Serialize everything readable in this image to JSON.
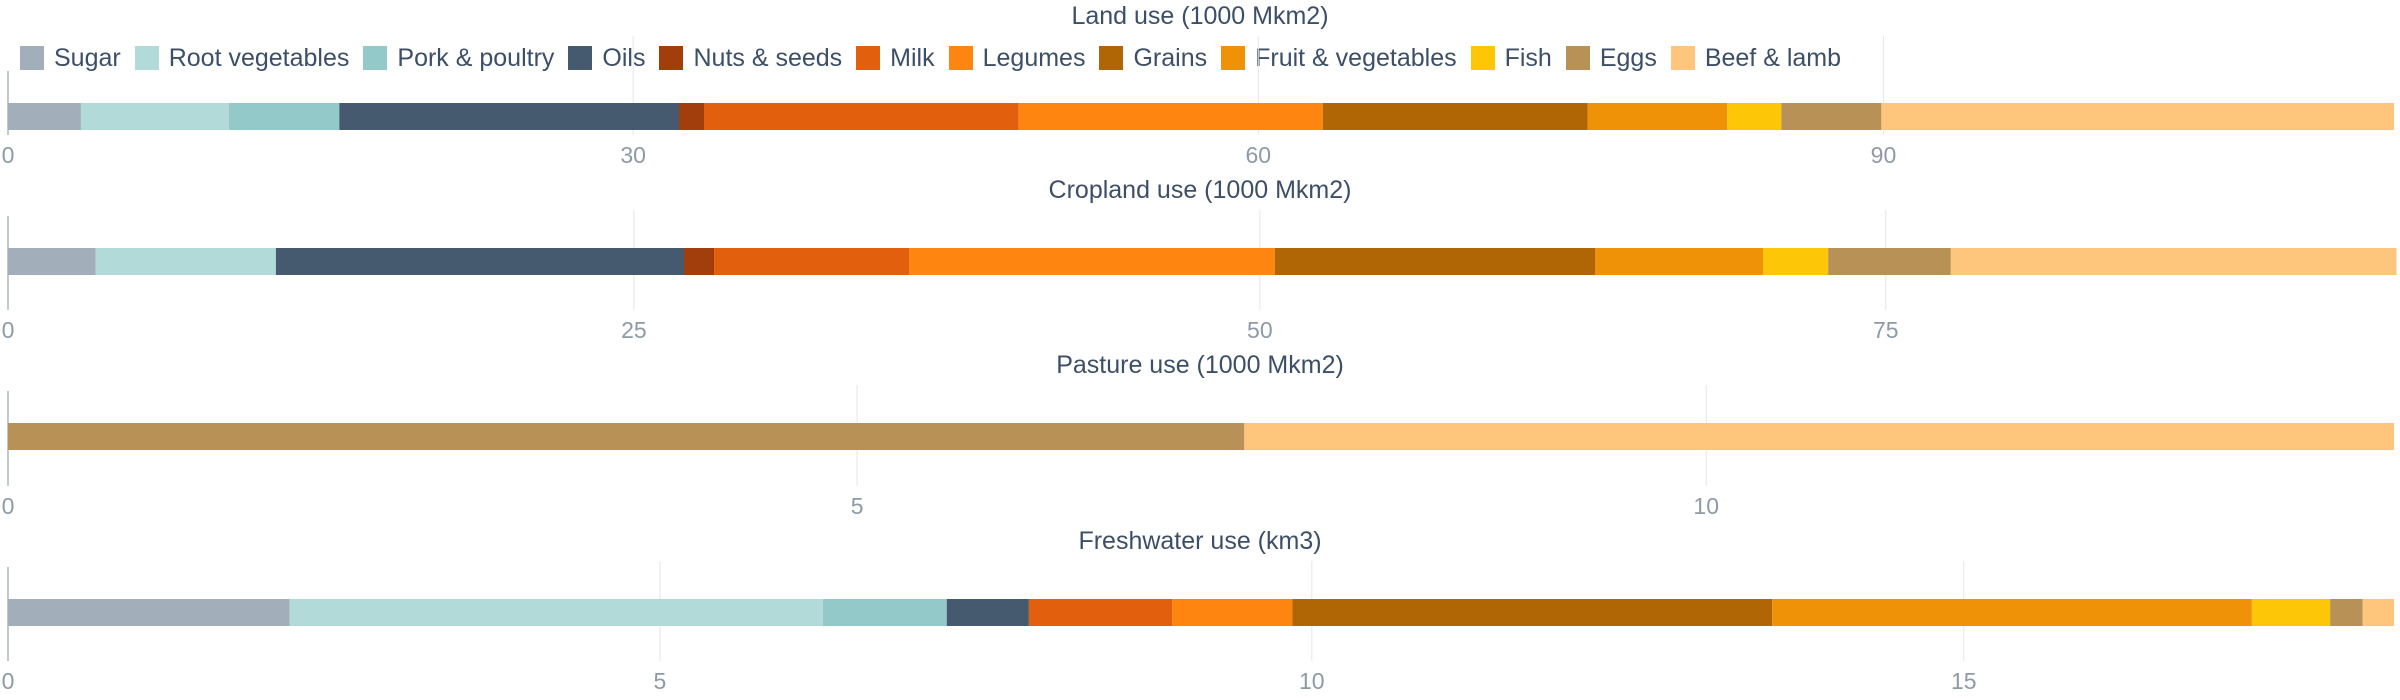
{
  "legend": {
    "items": [
      {
        "label": "Sugar",
        "color": "#a2aeb9"
      },
      {
        "label": "Root vegetables",
        "color": "#b2dad9"
      },
      {
        "label": "Pork & poultry",
        "color": "#93c9c9"
      },
      {
        "label": "Oils",
        "color": "#455a6f"
      },
      {
        "label": "Nuts & seeds",
        "color": "#a23d0c"
      },
      {
        "label": "Milk",
        "color": "#e2600d"
      },
      {
        "label": "Legumes",
        "color": "#fd8510"
      },
      {
        "label": "Grains",
        "color": "#b16605"
      },
      {
        "label": "Fruit & vegetables",
        "color": "#f09208"
      },
      {
        "label": "Fish",
        "color": "#fdc708"
      },
      {
        "label": "Eggs",
        "color": "#b79156"
      },
      {
        "label": "Beef & lamb",
        "color": "#fec67d"
      }
    ]
  },
  "chart_data": [
    {
      "type": "bar",
      "orientation": "horizontal",
      "stacked": true,
      "title": "Land use (1000 Mkm2)",
      "xlim": [
        0,
        114.5
      ],
      "ticks": [
        0,
        30,
        60,
        90
      ],
      "grid": true,
      "series": [
        {
          "name": "Sugar",
          "values": [
            3.5
          ]
        },
        {
          "name": "Root vegetables",
          "values": [
            7.1
          ]
        },
        {
          "name": "Pork & poultry",
          "values": [
            5.3
          ]
        },
        {
          "name": "Oils",
          "values": [
            16.3
          ]
        },
        {
          "name": "Nuts & seeds",
          "values": [
            1.2
          ]
        },
        {
          "name": "Milk",
          "values": [
            15.1
          ]
        },
        {
          "name": "Legumes",
          "values": [
            14.6
          ]
        },
        {
          "name": "Grains",
          "values": [
            12.7
          ]
        },
        {
          "name": "Fruit & vegetables",
          "values": [
            6.7
          ]
        },
        {
          "name": "Fish",
          "values": [
            2.6
          ]
        },
        {
          "name": "Eggs",
          "values": [
            4.8
          ]
        },
        {
          "name": "Beef & lamb",
          "values": [
            24.6
          ]
        }
      ]
    },
    {
      "type": "bar",
      "orientation": "horizontal",
      "stacked": true,
      "title": "Cropland use (1000 Mkm2)",
      "xlim": [
        0,
        95.3
      ],
      "ticks": [
        0,
        25,
        50,
        75
      ],
      "grid": true,
      "series": [
        {
          "name": "Sugar",
          "values": [
            3.5
          ]
        },
        {
          "name": "Root vegetables",
          "values": [
            7.2
          ]
        },
        {
          "name": "Pork & poultry",
          "values": [
            0
          ]
        },
        {
          "name": "Oils",
          "values": [
            16.3
          ]
        },
        {
          "name": "Nuts & seeds",
          "values": [
            1.2
          ]
        },
        {
          "name": "Milk",
          "values": [
            7.8
          ]
        },
        {
          "name": "Legumes",
          "values": [
            14.6
          ]
        },
        {
          "name": "Grains",
          "values": [
            12.8
          ]
        },
        {
          "name": "Fruit & vegetables",
          "values": [
            6.7
          ]
        },
        {
          "name": "Fish",
          "values": [
            2.6
          ]
        },
        {
          "name": "Eggs",
          "values": [
            4.9
          ]
        },
        {
          "name": "Beef & lamb",
          "values": [
            17.8
          ]
        }
      ]
    },
    {
      "type": "bar",
      "orientation": "horizontal",
      "stacked": true,
      "title": "Pasture use (1000 Mkm2)",
      "xlim": [
        0,
        14.05
      ],
      "ticks": [
        0,
        5,
        10
      ],
      "grid": true,
      "series": [
        {
          "name": "Eggs",
          "values": [
            7.28
          ]
        },
        {
          "name": "Beef & lamb",
          "values": [
            6.77
          ]
        }
      ]
    },
    {
      "type": "bar",
      "orientation": "horizontal",
      "stacked": true,
      "title": "Freshwater use (km3)",
      "xlim": [
        0,
        18.3
      ],
      "ticks": [
        0,
        5,
        10,
        15
      ],
      "grid": true,
      "series": [
        {
          "name": "Sugar",
          "values": [
            2.16
          ]
        },
        {
          "name": "Root vegetables",
          "values": [
            4.09
          ]
        },
        {
          "name": "Pork & poultry",
          "values": [
            0.95
          ]
        },
        {
          "name": "Oils",
          "values": [
            0.63
          ]
        },
        {
          "name": "Milk",
          "values": [
            1.1
          ]
        },
        {
          "name": "Legumes",
          "values": [
            0.92
          ]
        },
        {
          "name": "Grains",
          "values": [
            3.68
          ]
        },
        {
          "name": "Fruit & vegetables",
          "values": [
            3.68
          ]
        },
        {
          "name": "Fish",
          "values": [
            0.6
          ]
        },
        {
          "name": "Eggs",
          "values": [
            0.25
          ]
        },
        {
          "name": "Beef & lamb",
          "values": [
            0.24
          ]
        }
      ]
    }
  ]
}
